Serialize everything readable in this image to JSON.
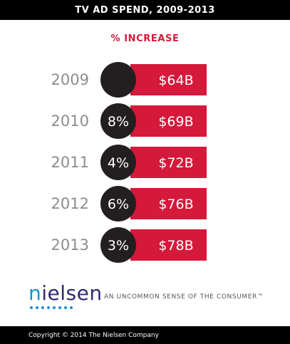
{
  "title": "TV AD SPEND, 2009-2013",
  "brand": {
    "name": "nielsen",
    "tagline": "AN UNCOMMON SENSE OF THE CONSUMER™",
    "colors": {
      "primary": "#2e2a6e",
      "accent": "#1a8fd1"
    }
  },
  "copyright": "Copyright © 2014 The Nielsen Company",
  "colors": {
    "bar": "#d4193b",
    "circle": "#231f20",
    "year": "#8c8c8c"
  },
  "chart_data": {
    "type": "bar",
    "title": "TV AD SPEND, 2009-2013",
    "subtitle": "% INCREASE",
    "categories": [
      "2009",
      "2010",
      "2011",
      "2012",
      "2013"
    ],
    "values": [
      64,
      69,
      72,
      76,
      78
    ],
    "value_labels": [
      "$64B",
      "$69B",
      "$72B",
      "$76B",
      "$78B"
    ],
    "pct_increase_labels": [
      "",
      "8%",
      "4%",
      "6%",
      "3%"
    ]
  }
}
